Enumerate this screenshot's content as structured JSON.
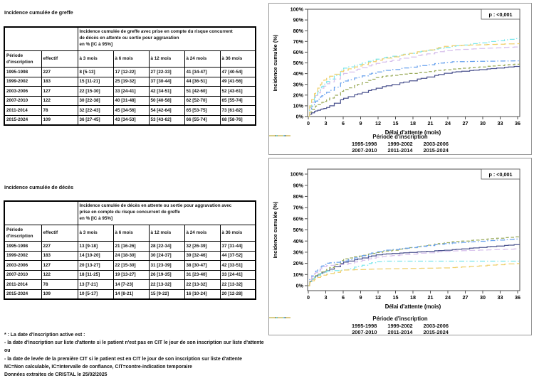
{
  "tables": [
    {
      "title": "Incidence cumulée de greffe",
      "merged_header_lines": [
        "Incidence cumulée de greffe avec prise en compte du risque concurrent",
        "de décès en attente ou sortie pour aggravation",
        "en % [IC à 95%]"
      ],
      "columns": [
        "Période d'inscription",
        "effectif",
        "à 3 mois",
        "à 6 mois",
        "à 12 mois",
        "à 24 mois",
        "à 36 mois"
      ],
      "rows": [
        [
          "1995-1998",
          "227",
          "8 [5-13]",
          "17 [12-22]",
          "27 [22-33]",
          "41 [34-47]",
          "47 [40-54]"
        ],
        [
          "1999-2002",
          "183",
          "15 [11-21]",
          "25 [19-32]",
          "37 [30-44]",
          "44 [36-51]",
          "49 [41-56]"
        ],
        [
          "2003-2006",
          "127",
          "22 [15-30]",
          "33 [24-41]",
          "42 [34-51]",
          "51 [42-60]",
          "52 [43-61]"
        ],
        [
          "2007-2010",
          "122",
          "30 [22-38]",
          "40 [31-48]",
          "50 [40-58]",
          "62 [52-70]",
          "65 [55-74]"
        ],
        [
          "2011-2014",
          "78",
          "32 [22-43]",
          "45 [34-56]",
          "54 [42-64]",
          "65 [53-75]",
          "73 [61-82]"
        ],
        [
          "2015-2024",
          "109",
          "36 [27-45]",
          "43 [34-53]",
          "53 [43-62]",
          "66 [55-74]",
          "68 [58-76]"
        ]
      ]
    },
    {
      "title": "Incidence cumulée de décès",
      "merged_header_lines": [
        "Incidence cumulée de décès en attente ou sortie pour aggravation avec",
        "prise en compte du risque concurrent de greffe",
        "en % [IC à 95%]"
      ],
      "columns": [
        "Période d'inscription",
        "effectif",
        "à 3 mois",
        "à 6 mois",
        "à 12 mois",
        "à 24 mois",
        "à 36 mois"
      ],
      "rows": [
        [
          "1995-1998",
          "227",
          "13 [9-18]",
          "21 [16-26]",
          "28 [22-34]",
          "32 [26-39]",
          "37 [31-44]"
        ],
        [
          "1999-2002",
          "183",
          "14 [10-20]",
          "24 [18-30]",
          "30 [24-37]",
          "39 [32-46]",
          "44 [37-52]"
        ],
        [
          "2003-2006",
          "127",
          "20 [13-27]",
          "22 [15-30]",
          "31 [23-39]",
          "38 [30-47]",
          "42 [33-51]"
        ],
        [
          "2007-2010",
          "122",
          "18 [11-25]",
          "19 [13-27]",
          "26 [19-35]",
          "31 [23-40]",
          "33 [24-41]"
        ],
        [
          "2011-2014",
          "78",
          "13 [7-21]",
          "14 [7-23]",
          "22 [13-32]",
          "22 [13-32]",
          "22 [13-32]"
        ],
        [
          "2015-2024",
          "109",
          "10 [5-17]",
          "14 [8-21]",
          "15 [9-22]",
          "16 [10-24]",
          "20 [12-28]"
        ]
      ]
    }
  ],
  "footnotes": [
    "* : La date d'inscription active est :",
    "- la date d'inscription sur liste d'attente si le patient n'est pas en CIT le jour de son inscription sur liste d'attente",
    "ou",
    "- la date de levée de la première CIT si le patient est en CIT le jour de son inscription sur liste d'attente",
    "NC=Non calculable, IC=Intervalle de confiance, CIT=contre-indication temporaire",
    "Données extraites de CRISTAL le 25/02/2025"
  ],
  "chart_data": [
    {
      "type": "line",
      "step": true,
      "title": "Incidence cumulée de greffe",
      "p_label": "p : <0,001",
      "xlabel": "Délai d'attente (mois)",
      "ylabel": "Incidence cumulée (%)",
      "legend_title": "Période d'inscription",
      "xlim": [
        0,
        36
      ],
      "ylim": [
        0,
        100
      ],
      "x_ticks": [
        0,
        3,
        6,
        9,
        12,
        15,
        18,
        21,
        24,
        27,
        30,
        33,
        36
      ],
      "y_tick_labels": [
        "0%",
        "10%",
        "20%",
        "30%",
        "40%",
        "50%",
        "60%",
        "70%",
        "80%",
        "90%",
        "100%"
      ],
      "months": [
        0,
        3,
        6,
        12,
        24,
        36
      ],
      "series": [
        {
          "name": "1995-1998",
          "color": "#4C538F",
          "dash": "solid",
          "values": [
            0,
            8,
            17,
            27,
            41,
            47
          ]
        },
        {
          "name": "1999-2002",
          "color": "#9AAB5A",
          "dash": "dash",
          "values": [
            0,
            15,
            25,
            37,
            44,
            49
          ]
        },
        {
          "name": "2003-2006",
          "color": "#66A0EE",
          "dash": "dashdot",
          "values": [
            0,
            22,
            33,
            42,
            51,
            52
          ]
        },
        {
          "name": "2007-2010",
          "color": "#D7C0EC",
          "dash": "longdash",
          "values": [
            0,
            30,
            40,
            50,
            62,
            65
          ]
        },
        {
          "name": "2011-2014",
          "color": "#7BE7EC",
          "dash": "dashdot",
          "values": [
            0,
            32,
            45,
            54,
            65,
            73
          ]
        },
        {
          "name": "2015-2024",
          "color": "#EFD06E",
          "dash": "longdash",
          "values": [
            0,
            36,
            43,
            53,
            66,
            68
          ]
        }
      ]
    },
    {
      "type": "line",
      "step": true,
      "title": "Incidence cumulée de décès",
      "p_label": "p : <0,001",
      "xlabel": "Délai d'attente (mois)",
      "ylabel": "Incidence cumulée (%)",
      "legend_title": "Période d'inscription",
      "xlim": [
        0,
        36
      ],
      "ylim": [
        0,
        100
      ],
      "x_ticks": [
        0,
        3,
        6,
        9,
        12,
        15,
        18,
        21,
        24,
        27,
        30,
        33,
        36
      ],
      "y_tick_labels": [
        "0%",
        "10%",
        "20%",
        "30%",
        "40%",
        "50%",
        "60%",
        "70%",
        "80%",
        "90%",
        "100%"
      ],
      "months": [
        0,
        3,
        6,
        12,
        24,
        36
      ],
      "series": [
        {
          "name": "1995-1998",
          "color": "#4C538F",
          "dash": "solid",
          "values": [
            0,
            13,
            21,
            28,
            32,
            37
          ]
        },
        {
          "name": "1999-2002",
          "color": "#9AAB5A",
          "dash": "dash",
          "values": [
            0,
            14,
            24,
            30,
            39,
            44
          ]
        },
        {
          "name": "2003-2006",
          "color": "#66A0EE",
          "dash": "dashdot",
          "values": [
            0,
            20,
            22,
            31,
            38,
            42
          ]
        },
        {
          "name": "2007-2010",
          "color": "#D7C0EC",
          "dash": "longdash",
          "values": [
            0,
            18,
            19,
            26,
            31,
            33
          ]
        },
        {
          "name": "2011-2014",
          "color": "#7BE7EC",
          "dash": "dashdot",
          "values": [
            0,
            13,
            14,
            22,
            22,
            22
          ]
        },
        {
          "name": "2015-2024",
          "color": "#EFD06E",
          "dash": "longdash",
          "values": [
            0,
            10,
            14,
            15,
            16,
            20
          ]
        }
      ]
    }
  ]
}
